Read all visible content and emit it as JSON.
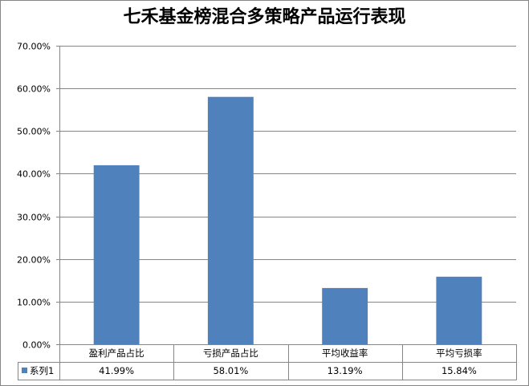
{
  "chart_data": {
    "type": "bar",
    "title": "七禾基金榜混合多策略产品运行表现",
    "categories": [
      "盈利产品占比",
      "亏损产品占比",
      "平均收益率",
      "平均亏损率"
    ],
    "series": [
      {
        "name": "系列1",
        "values": [
          41.99,
          58.01,
          13.19,
          15.84
        ]
      }
    ],
    "ylim": [
      0,
      70
    ],
    "yticks": [
      0,
      10,
      20,
      30,
      40,
      50,
      60,
      70
    ],
    "grid": true,
    "legend": "data-table",
    "data_table": true
  },
  "colors": {
    "bar": "#4F81BD",
    "gridline": "#868686",
    "frame": "#868686"
  }
}
